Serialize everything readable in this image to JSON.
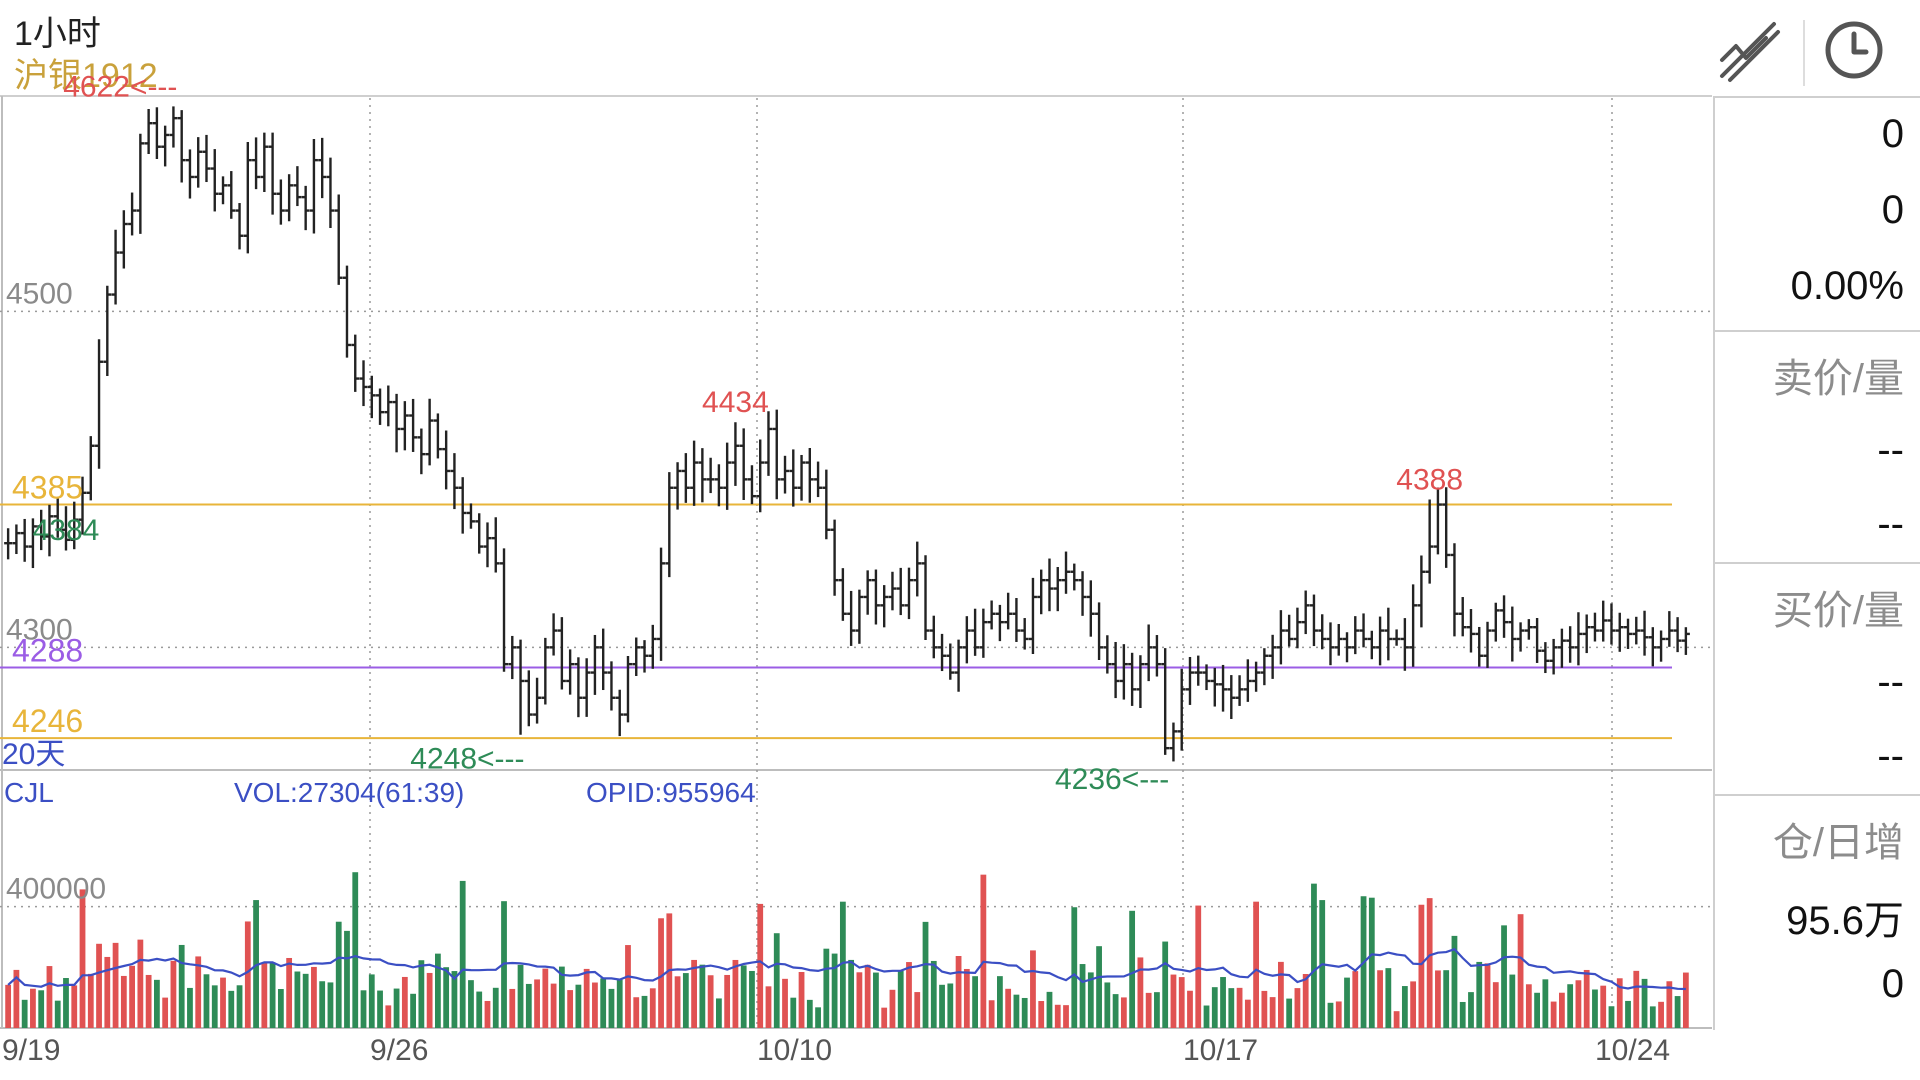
{
  "header": {
    "period": "1小时",
    "contract": "沪银1912"
  },
  "toolbar": {
    "draw_icon": "trend-draw-icon",
    "clock_icon": "clock-icon"
  },
  "quote_panel": {
    "values": [
      "0",
      "0",
      "0.00%"
    ],
    "ask": {
      "label": "卖价/量",
      "values": [
        "--",
        "--"
      ]
    },
    "bid": {
      "label": "买价/量",
      "values": [
        "--",
        "--"
      ]
    },
    "oi": {
      "label": "仓/日增",
      "values": [
        "95.6万",
        "0"
      ]
    }
  },
  "colors": {
    "up": "#e05252",
    "down": "#2e8b57",
    "bar": "#222222",
    "ma": "#3b4fc4",
    "gold": "#e8b53a",
    "purple": "#9b5de5",
    "grid": "#9a9a9a"
  },
  "chart_data": [
    {
      "type": "bar",
      "panel": "price",
      "ylim": [
        4227,
        4627
      ],
      "ytick_labels": [
        "4500",
        "4300"
      ],
      "ytick_values": [
        4500,
        4300
      ],
      "x_labels": [
        "9/19",
        "9/26",
        "10/10",
        "10/17",
        "10/24"
      ],
      "extreme_marks": [
        {
          "text": "4622<---",
          "value": 4622,
          "kind": "high"
        },
        {
          "text": "4434",
          "value": 4434,
          "kind": "high"
        },
        {
          "text": "4388",
          "value": 4388,
          "kind": "high"
        },
        {
          "text": "4384",
          "value": 4384,
          "kind": "low"
        },
        {
          "text": "4248<---",
          "value": 4248,
          "kind": "low"
        },
        {
          "text": "4236<---",
          "value": 4236,
          "kind": "low"
        }
      ],
      "hlines": [
        {
          "label": "4385",
          "value": 4385,
          "color": "#e8b53a"
        },
        {
          "label": "4288",
          "value": 4288,
          "color": "#9b5de5"
        },
        {
          "label": "4246",
          "value": 4246,
          "color": "#e8b53a"
        }
      ],
      "hline_label_20d": "20天",
      "path": [
        4362,
        4368,
        4360,
        4372,
        4366,
        4378,
        4370,
        4364,
        4376,
        4392,
        4420,
        4470,
        4510,
        4535,
        4552,
        4560,
        4600,
        4612,
        4598,
        4605,
        4615,
        4590,
        4580,
        4595,
        4585,
        4570,
        4575,
        4560,
        4545,
        4590,
        4580,
        4598,
        4570,
        4560,
        4575,
        4568,
        4560,
        4590,
        4580,
        4560,
        4520,
        4480,
        4460,
        4455,
        4450,
        4440,
        4446,
        4430,
        4438,
        4425,
        4415,
        4435,
        4418,
        4405,
        4395,
        4380,
        4375,
        4360,
        4365,
        4350,
        4290,
        4300,
        4280,
        4260,
        4270,
        4300,
        4310,
        4280,
        4290,
        4270,
        4285,
        4300,
        4285,
        4270,
        4260,
        4290,
        4300,
        4295,
        4305,
        4350,
        4395,
        4405,
        4395,
        4410,
        4400,
        4400,
        4395,
        4410,
        4420,
        4400,
        4390,
        4410,
        4430,
        4400,
        4405,
        4395,
        4410,
        4400,
        4395,
        4370,
        4340,
        4320,
        4310,
        4330,
        4340,
        4325,
        4330,
        4335,
        4325,
        4340,
        4350,
        4310,
        4300,
        4295,
        4285,
        4300,
        4310,
        4300,
        4315,
        4320,
        4315,
        4320,
        4310,
        4305,
        4330,
        4340,
        4335,
        4340,
        4345,
        4340,
        4330,
        4320,
        4300,
        4290,
        4280,
        4290,
        4275,
        4290,
        4300,
        4290,
        4240,
        4250,
        4275,
        4285,
        4285,
        4280,
        4278,
        4275,
        4270,
        4275,
        4280,
        4285,
        4295,
        4300,
        4310,
        4305,
        4315,
        4325,
        4310,
        4305,
        4300,
        4305,
        4300,
        4310,
        4305,
        4300,
        4310,
        4305,
        4305,
        4300,
        4325,
        4345,
        4360,
        4385,
        4355,
        4320,
        4312,
        4308,
        4295,
        4310,
        4322,
        4315,
        4305,
        4310,
        4312,
        4298,
        4292,
        4300,
        4304,
        4300,
        4308,
        4312,
        4310,
        4316,
        4310,
        4312,
        4308,
        4310,
        4306,
        4300,
        4305,
        4310,
        4304,
        4308
      ],
      "path_note_extremes": [
        {
          "index": 20,
          "value": 4622
        },
        {
          "index": 88,
          "value": 4434
        },
        {
          "index": 172,
          "value": 4388
        },
        {
          "index": 7,
          "value": 4384
        },
        {
          "index": 62,
          "value": 4248
        },
        {
          "index": 140,
          "value": 4236
        }
      ]
    },
    {
      "type": "bar",
      "panel": "volume",
      "title": "CJL",
      "ylim": [
        0,
        850000
      ],
      "ytick_labels": [
        "400000"
      ],
      "ytick_values": [
        400000
      ],
      "legend": [
        {
          "text": "VOL:27304(61:39)",
          "color": "#3b4fc4"
        },
        {
          "text": "OPID:955964",
          "color": "#3b4fc4"
        }
      ]
    }
  ]
}
